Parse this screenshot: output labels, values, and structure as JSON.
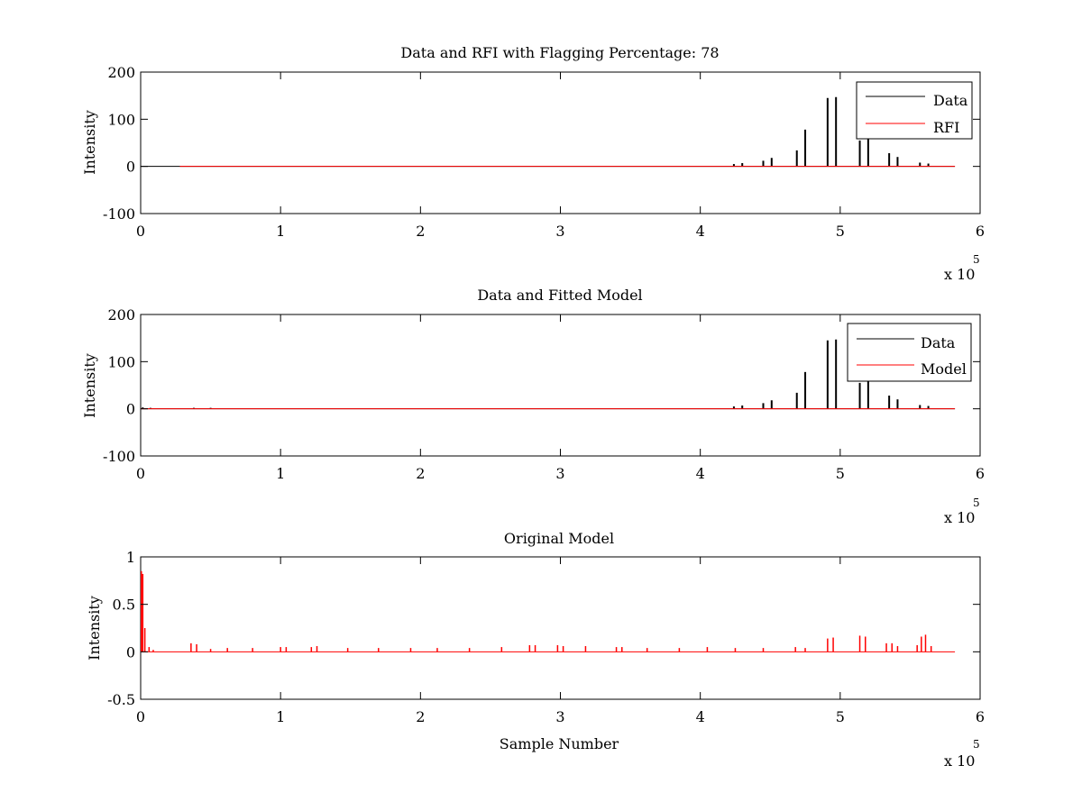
{
  "chart_data": [
    {
      "type": "line",
      "title": "Data and RFI with Flagging Percentage: 78",
      "xlabel": "",
      "ylabel": "Intensity",
      "xlim": [
        0,
        600000
      ],
      "ylim": [
        -100,
        200
      ],
      "x_ticks": [
        0,
        100000,
        200000,
        300000,
        400000,
        500000,
        600000
      ],
      "x_tick_labels": [
        "0",
        "1",
        "2",
        "3",
        "4",
        "5",
        "6"
      ],
      "y_ticks": [
        -100,
        0,
        100,
        200
      ],
      "y_tick_labels": [
        "-100",
        "0",
        "100",
        "200"
      ],
      "x_multiplier_label": "x 10",
      "x_multiplier_exponent": "5",
      "legend": {
        "placement": "top-right",
        "entries": [
          "Data",
          "RFI"
        ]
      },
      "series": [
        {
          "name": "Data",
          "color": "#000000",
          "baseline": {
            "x_start": 0,
            "x_end": 582000,
            "y": 0
          },
          "spikes": [
            {
              "x": 424000,
              "y": 5
            },
            {
              "x": 430000,
              "y": 7
            },
            {
              "x": 445000,
              "y": 12
            },
            {
              "x": 451000,
              "y": 18
            },
            {
              "x": 469000,
              "y": 34
            },
            {
              "x": 475000,
              "y": 78
            },
            {
              "x": 491000,
              "y": 145
            },
            {
              "x": 497000,
              "y": 147
            },
            {
              "x": 514000,
              "y": 55
            },
            {
              "x": 520000,
              "y": 70
            },
            {
              "x": 535000,
              "y": 28
            },
            {
              "x": 541000,
              "y": 20
            },
            {
              "x": 557000,
              "y": 8
            },
            {
              "x": 563000,
              "y": 6
            }
          ]
        },
        {
          "name": "RFI",
          "color": "#ff0000",
          "baseline": {
            "x_start": 28000,
            "x_end": 582000,
            "y": 0
          },
          "spikes": []
        }
      ]
    },
    {
      "type": "line",
      "title": "Data and Fitted Model",
      "xlabel": "",
      "ylabel": "Intensity",
      "xlim": [
        0,
        600000
      ],
      "ylim": [
        -100,
        200
      ],
      "x_ticks": [
        0,
        100000,
        200000,
        300000,
        400000,
        500000,
        600000
      ],
      "x_tick_labels": [
        "0",
        "1",
        "2",
        "3",
        "4",
        "5",
        "6"
      ],
      "y_ticks": [
        -100,
        0,
        100,
        200
      ],
      "y_tick_labels": [
        "-100",
        "0",
        "100",
        "200"
      ],
      "x_multiplier_label": "x 10",
      "x_multiplier_exponent": "5",
      "legend": {
        "placement": "top-right",
        "entries": [
          "Data",
          "Model"
        ]
      },
      "series": [
        {
          "name": "Data",
          "color": "#000000",
          "baseline": {
            "x_start": 0,
            "x_end": 582000,
            "y": 0
          },
          "spikes": [
            {
              "x": 1500,
              "y": 3
            },
            {
              "x": 7000,
              "y": 2
            },
            {
              "x": 38000,
              "y": 2
            },
            {
              "x": 50000,
              "y": 2
            },
            {
              "x": 424000,
              "y": 5
            },
            {
              "x": 430000,
              "y": 7
            },
            {
              "x": 445000,
              "y": 12
            },
            {
              "x": 451000,
              "y": 18
            },
            {
              "x": 469000,
              "y": 34
            },
            {
              "x": 475000,
              "y": 78
            },
            {
              "x": 491000,
              "y": 145
            },
            {
              "x": 497000,
              "y": 147
            },
            {
              "x": 514000,
              "y": 55
            },
            {
              "x": 520000,
              "y": 70
            },
            {
              "x": 535000,
              "y": 28
            },
            {
              "x": 541000,
              "y": 20
            },
            {
              "x": 557000,
              "y": 8
            },
            {
              "x": 563000,
              "y": 6
            }
          ]
        },
        {
          "name": "Model",
          "color": "#ff0000",
          "baseline": {
            "x_start": 0,
            "x_end": 582000,
            "y": 0
          },
          "spikes": []
        }
      ]
    },
    {
      "type": "line",
      "title": "Original Model",
      "xlabel": "Sample Number",
      "ylabel": "Intensity",
      "xlim": [
        0,
        600000
      ],
      "ylim": [
        -0.5,
        1
      ],
      "x_ticks": [
        0,
        100000,
        200000,
        300000,
        400000,
        500000,
        600000
      ],
      "x_tick_labels": [
        "0",
        "1",
        "2",
        "3",
        "4",
        "5",
        "6"
      ],
      "y_ticks": [
        -0.5,
        0,
        0.5,
        1
      ],
      "y_tick_labels": [
        "-0.5",
        "0",
        "0.5",
        "1"
      ],
      "x_multiplier_label": "x 10",
      "x_multiplier_exponent": "5",
      "series": [
        {
          "color": "#ff0000",
          "baseline": {
            "x_start": 0,
            "x_end": 582000,
            "y": 0
          },
          "spikes": [
            {
              "x": 500,
              "y": 0.85
            },
            {
              "x": 1500,
              "y": 0.82
            },
            {
              "x": 3000,
              "y": 0.25
            },
            {
              "x": 6000,
              "y": 0.05
            },
            {
              "x": 9000,
              "y": 0.02
            },
            {
              "x": 36000,
              "y": 0.09
            },
            {
              "x": 40000,
              "y": 0.08
            },
            {
              "x": 50000,
              "y": 0.03
            },
            {
              "x": 62000,
              "y": 0.04
            },
            {
              "x": 80000,
              "y": 0.04
            },
            {
              "x": 100000,
              "y": 0.05
            },
            {
              "x": 104000,
              "y": 0.05
            },
            {
              "x": 122000,
              "y": 0.05
            },
            {
              "x": 126000,
              "y": 0.06
            },
            {
              "x": 148000,
              "y": 0.04
            },
            {
              "x": 170000,
              "y": 0.04
            },
            {
              "x": 193000,
              "y": 0.04
            },
            {
              "x": 212000,
              "y": 0.04
            },
            {
              "x": 235000,
              "y": 0.04
            },
            {
              "x": 258000,
              "y": 0.05
            },
            {
              "x": 278000,
              "y": 0.07
            },
            {
              "x": 282000,
              "y": 0.07
            },
            {
              "x": 298000,
              "y": 0.07
            },
            {
              "x": 302000,
              "y": 0.06
            },
            {
              "x": 318000,
              "y": 0.06
            },
            {
              "x": 340000,
              "y": 0.05
            },
            {
              "x": 344000,
              "y": 0.05
            },
            {
              "x": 362000,
              "y": 0.04
            },
            {
              "x": 385000,
              "y": 0.04
            },
            {
              "x": 405000,
              "y": 0.05
            },
            {
              "x": 425000,
              "y": 0.04
            },
            {
              "x": 445000,
              "y": 0.04
            },
            {
              "x": 468000,
              "y": 0.05
            },
            {
              "x": 475000,
              "y": 0.04
            },
            {
              "x": 491000,
              "y": 0.14
            },
            {
              "x": 495000,
              "y": 0.15
            },
            {
              "x": 514000,
              "y": 0.17
            },
            {
              "x": 518000,
              "y": 0.16
            },
            {
              "x": 533000,
              "y": 0.09
            },
            {
              "x": 537000,
              "y": 0.09
            },
            {
              "x": 541000,
              "y": 0.06
            },
            {
              "x": 555000,
              "y": 0.07
            },
            {
              "x": 558000,
              "y": 0.16
            },
            {
              "x": 561000,
              "y": 0.18
            },
            {
              "x": 565000,
              "y": 0.06
            }
          ]
        }
      ]
    }
  ]
}
